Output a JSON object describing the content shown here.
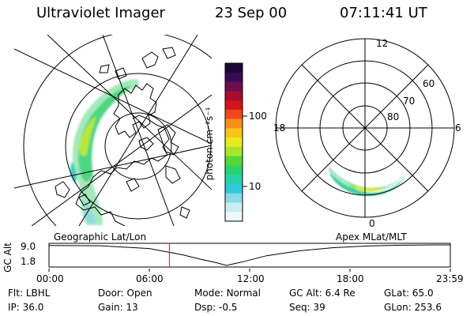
{
  "header": {
    "title": "Ultraviolet Imager",
    "date": "23 Sep 00",
    "time": "07:11:41 UT"
  },
  "colorbar": {
    "unit_label": "photon cm⁻²s⁻¹",
    "tick_labels": [
      "100",
      "10"
    ],
    "colors": [
      "#1a0a33",
      "#3a0b55",
      "#6b0d4f",
      "#a30d2e",
      "#d1141a",
      "#f0461a",
      "#f7901a",
      "#f8c51b",
      "#e9ea1c",
      "#a8e62a",
      "#54d838",
      "#27d36b",
      "#29d0ad",
      "#31c9da",
      "#86dce8",
      "#c8eef3",
      "#eef8fb"
    ]
  },
  "polar_plot": {
    "mlt_labels": {
      "top": "12",
      "right": "6",
      "bottom": "0",
      "left": "18"
    },
    "lat_labels": [
      "60",
      "70",
      "80"
    ]
  },
  "timeline": {
    "left_label": "Geographic Lat/Lon",
    "right_label": "Apex MLat/MLT",
    "y_axis_title": "GC Alt",
    "y_ticks": [
      "9.0",
      "1.8"
    ],
    "x_ticks": [
      "00:00",
      "06:00",
      "12:00",
      "18:00",
      "23:59"
    ],
    "altitude_curve": [
      [
        0,
        9.0
      ],
      [
        3,
        8.9
      ],
      [
        6,
        7.9
      ],
      [
        8,
        5.6
      ],
      [
        9,
        4.1
      ],
      [
        10,
        2.8
      ],
      [
        10.6,
        1.8
      ],
      [
        11.5,
        3.0
      ],
      [
        13,
        5.3
      ],
      [
        15,
        7.1
      ],
      [
        17,
        8.2
      ],
      [
        19,
        8.8
      ],
      [
        21,
        9.1
      ],
      [
        23,
        9.2
      ],
      [
        23.98,
        9.2
      ]
    ],
    "marker_hour": 7.2,
    "marker_color": "#e02020"
  },
  "info": {
    "rows": [
      [
        {
          "label": "Flt:",
          "value": "LBHL"
        },
        {
          "label": "Door:",
          "value": "Open"
        },
        {
          "label": "Mode:",
          "value": "Normal"
        },
        {
          "label": "GC Alt:",
          "value": "6.4 Re"
        },
        {
          "label": "GLat:",
          "value": "65.0"
        }
      ],
      [
        {
          "label": "IP:",
          "value": "36.0"
        },
        {
          "label": "Gain:",
          "value": "13"
        },
        {
          "label": "Dsp:",
          "value": "-0.5"
        },
        {
          "label": "Seq:",
          "value": "39"
        },
        {
          "label": "GLon:",
          "value": "253.6"
        }
      ]
    ]
  }
}
